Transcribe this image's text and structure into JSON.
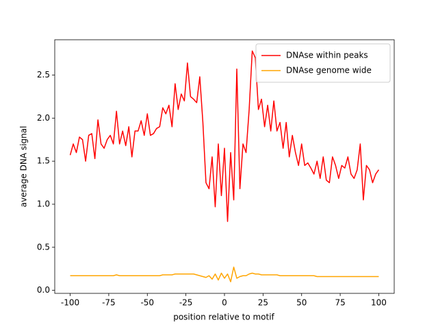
{
  "chart_data": {
    "type": "line",
    "xlabel": "position relative to motif",
    "ylabel": "average DNA signal",
    "x": [
      -100,
      -98,
      -96,
      -94,
      -92,
      -90,
      -88,
      -86,
      -84,
      -82,
      -80,
      -78,
      -76,
      -74,
      -72,
      -70,
      -68,
      -66,
      -64,
      -62,
      -60,
      -58,
      -56,
      -54,
      -52,
      -50,
      -48,
      -46,
      -44,
      -42,
      -40,
      -38,
      -36,
      -34,
      -32,
      -30,
      -28,
      -26,
      -24,
      -22,
      -20,
      -18,
      -16,
      -14,
      -12,
      -10,
      -8,
      -6,
      -4,
      -2,
      0,
      2,
      4,
      6,
      8,
      10,
      12,
      14,
      16,
      18,
      20,
      22,
      24,
      26,
      28,
      30,
      32,
      34,
      36,
      38,
      40,
      42,
      44,
      46,
      48,
      50,
      52,
      54,
      56,
      58,
      60,
      62,
      64,
      66,
      68,
      70,
      72,
      74,
      76,
      78,
      80,
      82,
      84,
      86,
      88,
      90,
      92,
      94,
      96,
      98,
      100
    ],
    "series": [
      {
        "name": "DNAse within peaks",
        "color": "#ff0000",
        "values": [
          1.57,
          1.7,
          1.6,
          1.78,
          1.75,
          1.5,
          1.8,
          1.82,
          1.53,
          1.98,
          1.7,
          1.65,
          1.75,
          1.8,
          1.7,
          2.08,
          1.7,
          1.85,
          1.68,
          1.9,
          1.55,
          1.85,
          1.85,
          1.97,
          1.8,
          2.05,
          1.8,
          1.82,
          1.88,
          1.9,
          2.12,
          2.05,
          2.15,
          1.9,
          2.4,
          2.1,
          2.28,
          2.2,
          2.64,
          2.25,
          2.22,
          2.18,
          2.48,
          1.95,
          1.25,
          1.18,
          1.55,
          0.97,
          1.7,
          1.1,
          1.65,
          0.8,
          1.6,
          1.05,
          2.57,
          1.18,
          1.7,
          1.6,
          2.1,
          2.78,
          2.7,
          2.1,
          2.22,
          1.9,
          2.15,
          1.85,
          2.2,
          1.85,
          1.95,
          1.65,
          1.95,
          1.55,
          1.8,
          1.6,
          1.45,
          1.7,
          1.45,
          1.48,
          1.42,
          1.35,
          1.5,
          1.3,
          1.55,
          1.28,
          1.25,
          1.55,
          1.45,
          1.3,
          1.45,
          1.42,
          1.55,
          1.35,
          1.3,
          1.4,
          1.7,
          1.05,
          1.45,
          1.4,
          1.25,
          1.35,
          1.4
        ]
      },
      {
        "name": "DNAse genome wide",
        "color": "#ffa500",
        "values": [
          0.17,
          0.17,
          0.17,
          0.17,
          0.17,
          0.17,
          0.17,
          0.17,
          0.17,
          0.17,
          0.17,
          0.17,
          0.17,
          0.17,
          0.17,
          0.18,
          0.17,
          0.17,
          0.17,
          0.17,
          0.17,
          0.17,
          0.17,
          0.17,
          0.17,
          0.17,
          0.17,
          0.17,
          0.17,
          0.17,
          0.18,
          0.18,
          0.18,
          0.18,
          0.19,
          0.19,
          0.19,
          0.19,
          0.19,
          0.19,
          0.19,
          0.18,
          0.17,
          0.16,
          0.15,
          0.17,
          0.13,
          0.19,
          0.12,
          0.2,
          0.14,
          0.19,
          0.1,
          0.27,
          0.14,
          0.16,
          0.17,
          0.17,
          0.19,
          0.2,
          0.19,
          0.19,
          0.18,
          0.18,
          0.18,
          0.18,
          0.18,
          0.18,
          0.17,
          0.17,
          0.17,
          0.17,
          0.17,
          0.17,
          0.17,
          0.17,
          0.17,
          0.17,
          0.17,
          0.17,
          0.16,
          0.16,
          0.16,
          0.16,
          0.16,
          0.16,
          0.16,
          0.16,
          0.16,
          0.16,
          0.16,
          0.16,
          0.16,
          0.16,
          0.16,
          0.16,
          0.16,
          0.16,
          0.16,
          0.16,
          0.16
        ]
      }
    ],
    "xlim": [
      -110,
      110
    ],
    "xticks": [
      -100,
      -75,
      -50,
      -25,
      0,
      25,
      50,
      75,
      100
    ],
    "ylim": [
      -0.035,
      2.91
    ],
    "yticks": [
      {
        "value": 0,
        "label": "0.0"
      },
      0.5,
      {
        "value": 1,
        "label": "1.0"
      },
      1.5,
      {
        "value": 2,
        "label": "2.0"
      },
      2.5
    ],
    "legend": "upper right"
  }
}
